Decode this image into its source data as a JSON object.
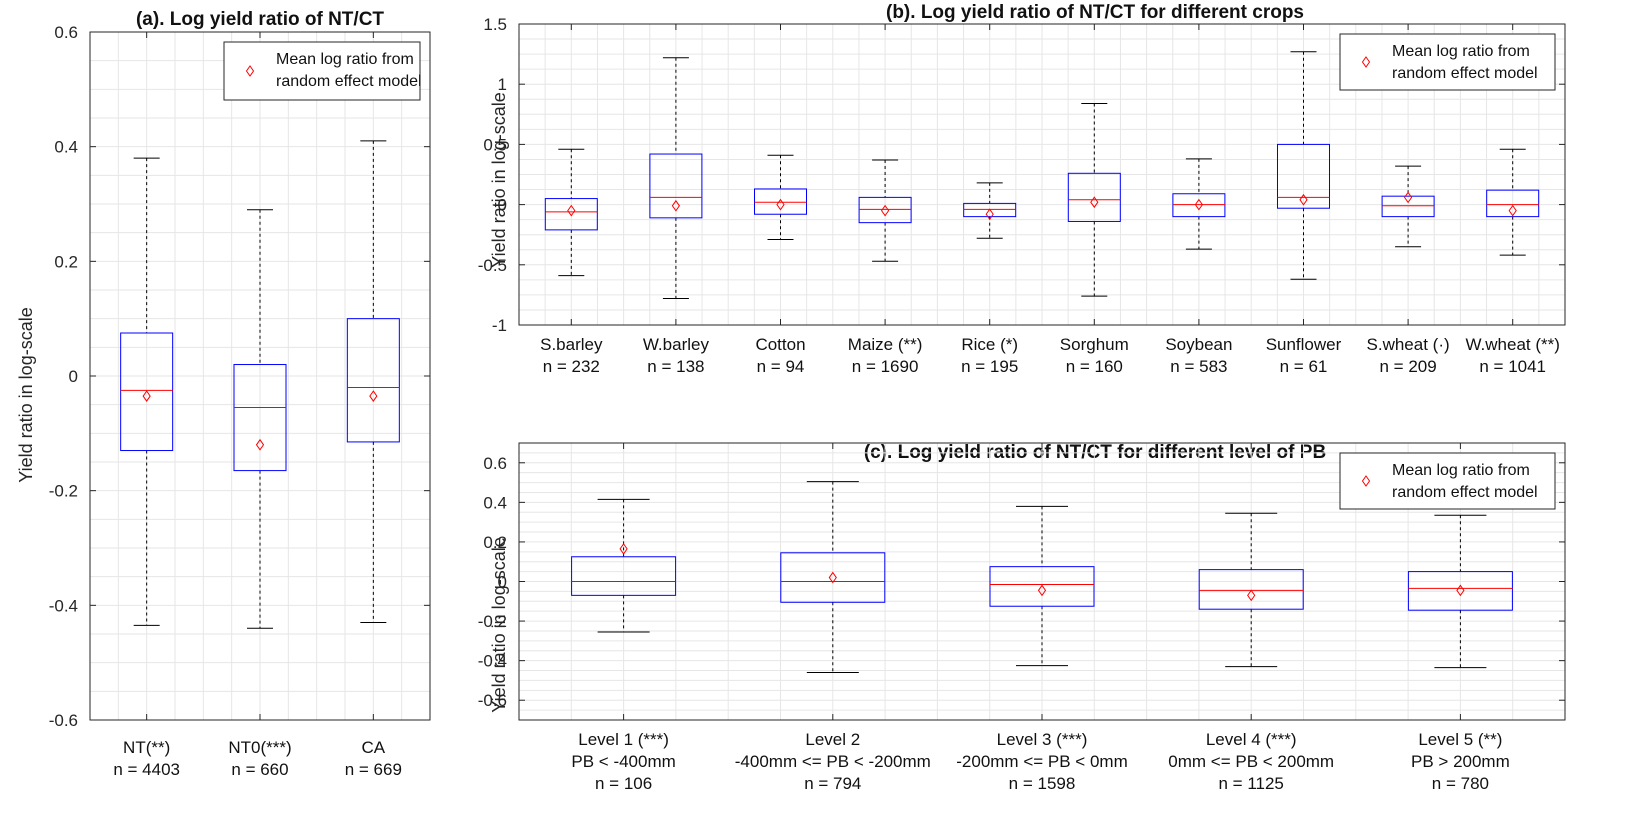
{
  "chart_data": [
    {
      "id": "a",
      "type": "box",
      "title": "(a). Log yield ratio of NT/CT",
      "ylabel": "Yield ratio in log-scale",
      "ylim": [
        -0.6,
        0.6
      ],
      "yticks": [
        -0.6,
        -0.4,
        -0.2,
        0,
        0.2,
        0.4,
        0.6
      ],
      "ytick_labels": [
        "-0.6",
        "-0.4",
        "-0.2",
        "0",
        "0.2",
        "0.4",
        "0.6"
      ],
      "grid": true,
      "legend": {
        "label_lines": [
          "Mean log ratio from",
          "random effect model"
        ],
        "position": "top-right"
      },
      "categories": [
        {
          "lines": [
            "NT(**)",
            "n = 4403"
          ],
          "whisker_low": -0.435,
          "q1": -0.13,
          "median": -0.025,
          "q3": 0.075,
          "whisker_high": 0.38,
          "mean": -0.035
        },
        {
          "lines": [
            "NT0(***)",
            "n = 660"
          ],
          "whisker_low": -0.44,
          "q1": -0.165,
          "median": -0.055,
          "q3": 0.02,
          "whisker_high": 0.29,
          "mean": -0.12
        },
        {
          "lines": [
            "CA",
            "n = 669"
          ],
          "whisker_low": -0.43,
          "q1": -0.115,
          "median": -0.02,
          "q3": 0.1,
          "whisker_high": 0.41,
          "mean": -0.035
        }
      ]
    },
    {
      "id": "b",
      "type": "box",
      "title": "(b). Log yield ratio of NT/CT for different crops",
      "ylabel": "Yield ratio in log-scale",
      "ylim": [
        -1,
        1.5
      ],
      "yticks": [
        -1,
        -0.5,
        0,
        0.5,
        1,
        1.5
      ],
      "ytick_labels": [
        "-1",
        "-0.5",
        "0",
        "0.5",
        "1",
        "1.5"
      ],
      "grid": true,
      "legend": {
        "label_lines": [
          "Mean log ratio from",
          "random effect model"
        ],
        "position": "top-right"
      },
      "categories": [
        {
          "lines": [
            "S.barley",
            "n = 232"
          ],
          "whisker_low": -0.59,
          "q1": -0.21,
          "median": -0.06,
          "q3": 0.05,
          "whisker_high": 0.46,
          "mean": -0.05
        },
        {
          "lines": [
            "W.barley",
            "n = 138"
          ],
          "whisker_low": -0.78,
          "q1": -0.11,
          "median": 0.06,
          "q3": 0.42,
          "whisker_high": 1.22,
          "mean": -0.01
        },
        {
          "lines": [
            "Cotton",
            "n = 94"
          ],
          "whisker_low": -0.29,
          "q1": -0.08,
          "median": 0.02,
          "q3": 0.13,
          "whisker_high": 0.41,
          "mean": 0.0
        },
        {
          "lines": [
            "Maize (**)",
            "n = 1690"
          ],
          "whisker_low": -0.47,
          "q1": -0.15,
          "median": -0.04,
          "q3": 0.06,
          "whisker_high": 0.37,
          "mean": -0.05
        },
        {
          "lines": [
            "Rice (*)",
            "n = 195"
          ],
          "whisker_low": -0.28,
          "q1": -0.1,
          "median": -0.04,
          "q3": 0.01,
          "whisker_high": 0.18,
          "mean": -0.08
        },
        {
          "lines": [
            "Sorghum",
            "n = 160"
          ],
          "whisker_low": -0.76,
          "q1": -0.14,
          "median": 0.04,
          "q3": 0.26,
          "whisker_high": 0.84,
          "mean": 0.02
        },
        {
          "lines": [
            "Soybean",
            "n = 583"
          ],
          "whisker_low": -0.37,
          "q1": -0.1,
          "median": 0.0,
          "q3": 0.09,
          "whisker_high": 0.38,
          "mean": 0.0
        },
        {
          "lines": [
            "Sunflower",
            "n = 61"
          ],
          "whisker_low": -0.62,
          "q1": -0.03,
          "median": 0.06,
          "q3": 0.5,
          "whisker_high": 1.27,
          "mean": 0.04
        },
        {
          "lines": [
            "S.wheat (·)",
            "n = 209"
          ],
          "whisker_low": -0.35,
          "q1": -0.1,
          "median": -0.01,
          "q3": 0.07,
          "whisker_high": 0.32,
          "mean": 0.06
        },
        {
          "lines": [
            "W.wheat (**)",
            "n = 1041"
          ],
          "whisker_low": -0.42,
          "q1": -0.1,
          "median": 0.0,
          "q3": 0.12,
          "whisker_high": 0.46,
          "mean": -0.05
        }
      ]
    },
    {
      "id": "c",
      "type": "box",
      "title": "(c). Log yield ratio of NT/CT for different level of PB",
      "ylabel": "Yield ratio in log-scale",
      "ylim": [
        -0.7,
        0.7
      ],
      "yticks": [
        -0.6,
        -0.4,
        -0.2,
        0,
        0.2,
        0.4,
        0.6
      ],
      "ytick_labels": [
        "-0.6",
        "-0.4",
        "-0.2",
        "0",
        "0.2",
        "0.4",
        "0.6"
      ],
      "grid": true,
      "legend": {
        "label_lines": [
          "Mean log ratio from",
          "random effect model"
        ],
        "position": "top-right"
      },
      "categories": [
        {
          "lines": [
            "Level 1 (***)",
            "PB < -400mm",
            "n = 106"
          ],
          "whisker_low": -0.255,
          "q1": -0.07,
          "median": 0.0,
          "q3": 0.125,
          "whisker_high": 0.415,
          "mean": 0.165
        },
        {
          "lines": [
            "Level 2",
            "-400mm <= PB < -200mm",
            "n = 794"
          ],
          "whisker_low": -0.46,
          "q1": -0.105,
          "median": 0.0,
          "q3": 0.145,
          "whisker_high": 0.505,
          "mean": 0.02
        },
        {
          "lines": [
            "Level 3 (***)",
            "-200mm <= PB < 0mm",
            "n = 1598"
          ],
          "whisker_low": -0.425,
          "q1": -0.125,
          "median": -0.015,
          "q3": 0.075,
          "whisker_high": 0.38,
          "mean": -0.045
        },
        {
          "lines": [
            "Level 4 (***)",
            "0mm <= PB < 200mm",
            "n = 1125"
          ],
          "whisker_low": -0.43,
          "q1": -0.14,
          "median": -0.045,
          "q3": 0.06,
          "whisker_high": 0.345,
          "mean": -0.07
        },
        {
          "lines": [
            "Level 5 (**)",
            "PB > 200mm",
            "n = 780"
          ],
          "whisker_low": -0.435,
          "q1": -0.145,
          "median": -0.035,
          "q3": 0.05,
          "whisker_high": 0.335,
          "mean": -0.045
        }
      ]
    }
  ],
  "colors": {
    "box": "#0000ff",
    "median": "#ff0000",
    "mean_marker": "#ff0000",
    "whisker": "#000000",
    "grid": "#e6e6e6",
    "axis": "#262626"
  }
}
